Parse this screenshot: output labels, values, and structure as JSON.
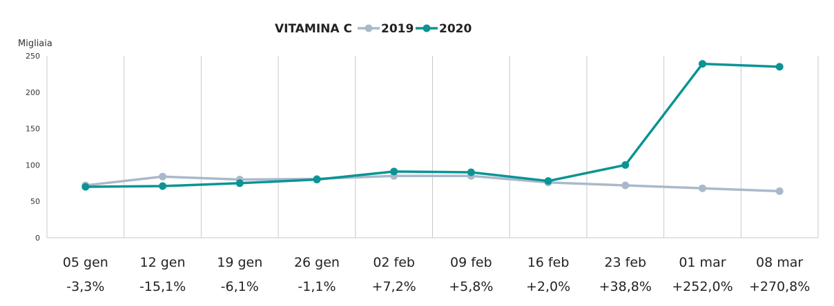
{
  "chart_data": {
    "type": "line",
    "title": "VITAMINA C",
    "ylabel": "Migliaia",
    "xlabel": "",
    "ylim": [
      0,
      250
    ],
    "yticks": [
      0,
      50,
      100,
      150,
      200,
      250
    ],
    "grid": "vertical",
    "legend_position": "top",
    "categories": [
      "05 gen",
      "12 gen",
      "19 gen",
      "26 gen",
      "02 feb",
      "09 feb",
      "16 feb",
      "23 feb",
      "01 mar",
      "08 mar"
    ],
    "changes": [
      "-3,3%",
      "-15,1%",
      "-6,1%",
      "-1,1%",
      "+7,2%",
      "+5,8%",
      "+2,0%",
      "+38,8%",
      "+252,0%",
      "+270,8%"
    ],
    "series": [
      {
        "name": "2019",
        "color": "#a9b9cb",
        "values": [
          72,
          84,
          80,
          81,
          85,
          85,
          76,
          72,
          68,
          64
        ]
      },
      {
        "name": "2020",
        "color": "#0a9494",
        "values": [
          70,
          71,
          75,
          80,
          91,
          90,
          78,
          100,
          239,
          235
        ]
      }
    ]
  }
}
